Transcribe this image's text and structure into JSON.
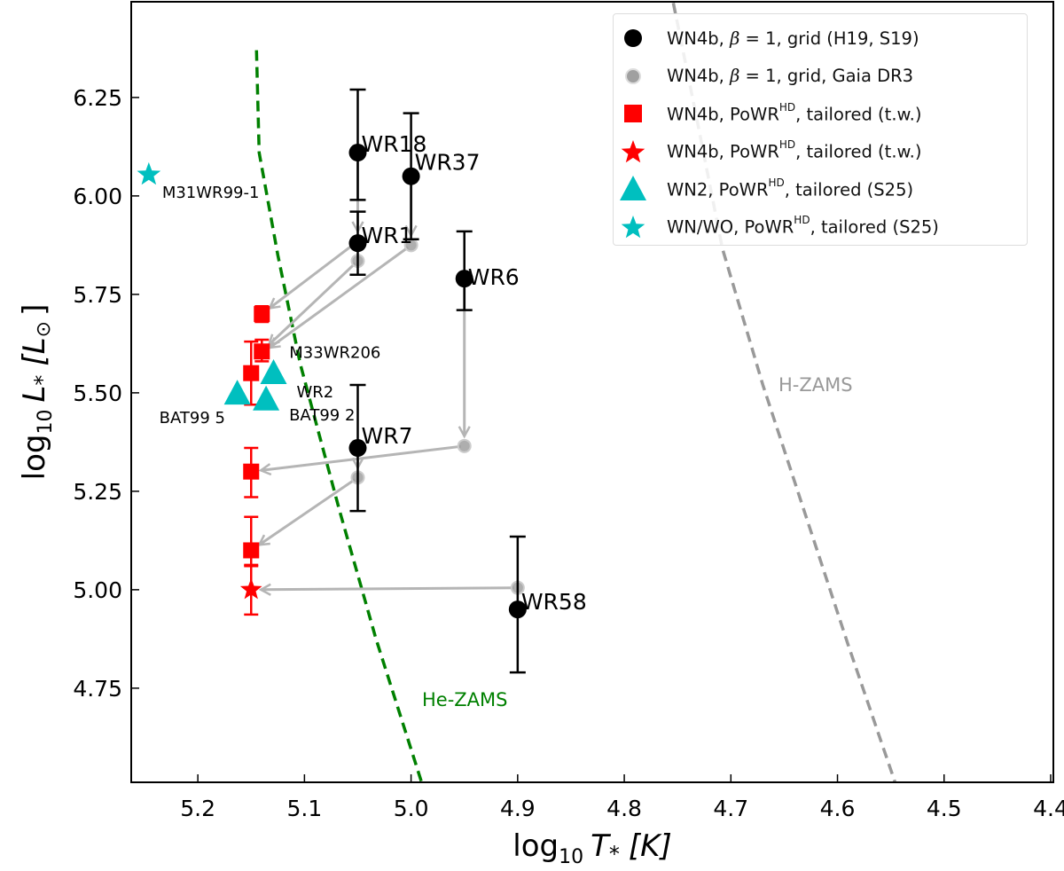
{
  "chart_data": {
    "type": "scatter",
    "xlabel": {
      "pre": "log",
      "sub": "10",
      "var": "T",
      "star": "*",
      "unit": "[K]"
    },
    "ylabel": {
      "pre": "log",
      "sub": "10",
      "var": "L",
      "star": "*",
      "unit": "[L",
      "unit_sub": "⊙",
      "unit_end": "]"
    },
    "xlim": [
      5.2625,
      4.3975
    ],
    "ylim": [
      4.511,
      6.493
    ],
    "x_reversed": true,
    "grid": false,
    "legend_position": "top-right",
    "xticks": [
      "5.2",
      "5.1",
      "5.0",
      "4.9",
      "4.8",
      "4.7",
      "4.6",
      "4.5",
      "4.4"
    ],
    "yticks": [
      "4.75",
      "5.00",
      "5.25",
      "5.50",
      "5.75",
      "6.00",
      "6.25"
    ],
    "colors": {
      "grid": "#000000",
      "gaia": "#a0a0a0",
      "tailored": "#ff0000",
      "s25": "#00bfbf",
      "he_zams": "#008000",
      "h_zams": "#999999",
      "arrow": "#b5b5b5"
    },
    "legend": [
      {
        "marker": "circle",
        "color": "#000000",
        "pre": "WN4b, ",
        "beta": "β",
        "mid": " = 1, grid (H19, S19)",
        "sup": "",
        "post": ""
      },
      {
        "marker": "circle-gray",
        "color": "#a0a0a0",
        "pre": "WN4b, ",
        "beta": "β",
        "mid": " = 1, grid, Gaia DR3",
        "sup": "",
        "post": ""
      },
      {
        "marker": "square",
        "color": "#ff0000",
        "pre": "WN4b, PoWR",
        "beta": "",
        "mid": "",
        "sup": "HD",
        "post": ", tailored (t.w.)"
      },
      {
        "marker": "star",
        "color": "#ff0000",
        "pre": "WN4b, PoWR",
        "beta": "",
        "mid": "",
        "sup": "HD",
        "post": ", tailored (t.w.)"
      },
      {
        "marker": "triangle",
        "color": "#00bfbf",
        "pre": "WN2, PoWR",
        "beta": "",
        "mid": "",
        "sup": "HD",
        "post": ", tailored (S25)"
      },
      {
        "marker": "star",
        "color": "#00bfbf",
        "pre": "WN/WO, PoWR",
        "beta": "",
        "mid": "",
        "sup": "HD",
        "post": ", tailored (S25)"
      }
    ],
    "series": {
      "grid": [
        {
          "label": "WR18",
          "x": 5.05,
          "y": 6.11,
          "y_hi": 6.27,
          "y_lo": 5.99
        },
        {
          "label": "WR37",
          "x": 5.0,
          "y": 6.05,
          "y_hi": 6.21,
          "y_lo": 5.89
        },
        {
          "label": "WR1",
          "x": 5.05,
          "y": 5.88,
          "y_hi": 5.96,
          "y_lo": 5.8
        },
        {
          "label": "WR6",
          "x": 4.95,
          "y": 5.79,
          "y_hi": 5.91,
          "y_lo": 5.71
        },
        {
          "label": "WR7",
          "x": 5.05,
          "y": 5.36,
          "y_hi": 5.52,
          "y_lo": 5.2
        },
        {
          "label": "WR58",
          "x": 4.9,
          "y": 4.95,
          "y_hi": 5.135,
          "y_lo": 4.79
        }
      ],
      "gaia": [
        {
          "x": 5.05,
          "y": 5.885
        },
        {
          "x": 5.05,
          "y": 5.835
        },
        {
          "x": 5.0,
          "y": 5.875
        },
        {
          "x": 4.95,
          "y": 5.365
        },
        {
          "x": 5.05,
          "y": 5.285
        },
        {
          "x": 4.9,
          "y": 5.005
        }
      ],
      "tailored_square": [
        {
          "x": 5.14,
          "y": 5.7,
          "y_hi": 5.72,
          "y_lo": 5.68
        },
        {
          "x": 5.14,
          "y": 5.605,
          "y_hi": 5.635,
          "y_lo": 5.58
        },
        {
          "x": 5.15,
          "y": 5.55,
          "y_hi": 5.63,
          "y_lo": 5.47
        },
        {
          "x": 5.15,
          "y": 5.3,
          "y_hi": 5.36,
          "y_lo": 5.235
        },
        {
          "x": 5.15,
          "y": 5.1,
          "y_hi": 5.185,
          "y_lo": 5.06
        }
      ],
      "tailored_star": [
        {
          "x": 5.15,
          "y": 5.0,
          "y_hi": 5.063,
          "y_lo": 4.937
        }
      ],
      "wn2_triangle": [
        {
          "label": "BAT99 5",
          "x": 5.163,
          "y": 5.495
        },
        {
          "label": "WR2",
          "x": 5.129,
          "y": 5.547
        },
        {
          "label": "BAT99 2",
          "x": 5.136,
          "y": 5.48
        }
      ],
      "wnwo_star": [
        {
          "label": "M31WR99-1",
          "x": 5.246,
          "y": 6.054
        }
      ],
      "extra_labels": [
        {
          "label": "M33WR206",
          "x": 5.14,
          "y": 5.605
        }
      ]
    },
    "arrows": [
      {
        "from": [
          5.05,
          6.11
        ],
        "to": [
          5.05,
          5.885
        ]
      },
      {
        "from": [
          5.0,
          6.05
        ],
        "to": [
          5.0,
          5.875
        ]
      },
      {
        "from": [
          4.95,
          5.79
        ],
        "to": [
          4.95,
          5.365
        ]
      },
      {
        "from": [
          5.05,
          5.36
        ],
        "to": [
          5.05,
          5.285
        ]
      },
      {
        "from": [
          5.05,
          5.885
        ],
        "to": [
          5.14,
          5.7
        ]
      },
      {
        "from": [
          5.05,
          5.835
        ],
        "to": [
          5.14,
          5.605
        ]
      },
      {
        "from": [
          5.0,
          5.875
        ],
        "to": [
          5.14,
          5.6
        ]
      },
      {
        "from": [
          4.95,
          5.365
        ],
        "to": [
          5.15,
          5.3
        ]
      },
      {
        "from": [
          5.05,
          5.285
        ],
        "to": [
          5.15,
          5.1
        ]
      },
      {
        "from": [
          4.9,
          5.005
        ],
        "to": [
          5.15,
          5.0
        ]
      }
    ],
    "curves": [
      {
        "label": "He-ZAMS",
        "color": "#008000",
        "points": [
          [
            5.145,
            6.37
          ],
          [
            5.1425,
            6.11
          ],
          [
            5.125,
            5.85
          ],
          [
            5.104,
            5.574
          ],
          [
            5.067,
            5.2
          ],
          [
            5.033,
            4.876
          ],
          [
            4.99,
            4.51
          ]
        ]
      },
      {
        "label": "H-ZAMS",
        "color": "#999999",
        "points": [
          [
            4.754,
            6.49
          ],
          [
            4.733,
            6.21
          ],
          [
            4.708,
            5.867
          ],
          [
            4.67,
            5.52
          ],
          [
            4.63,
            5.19
          ],
          [
            4.59,
            4.86
          ],
          [
            4.546,
            4.511
          ]
        ]
      }
    ]
  }
}
